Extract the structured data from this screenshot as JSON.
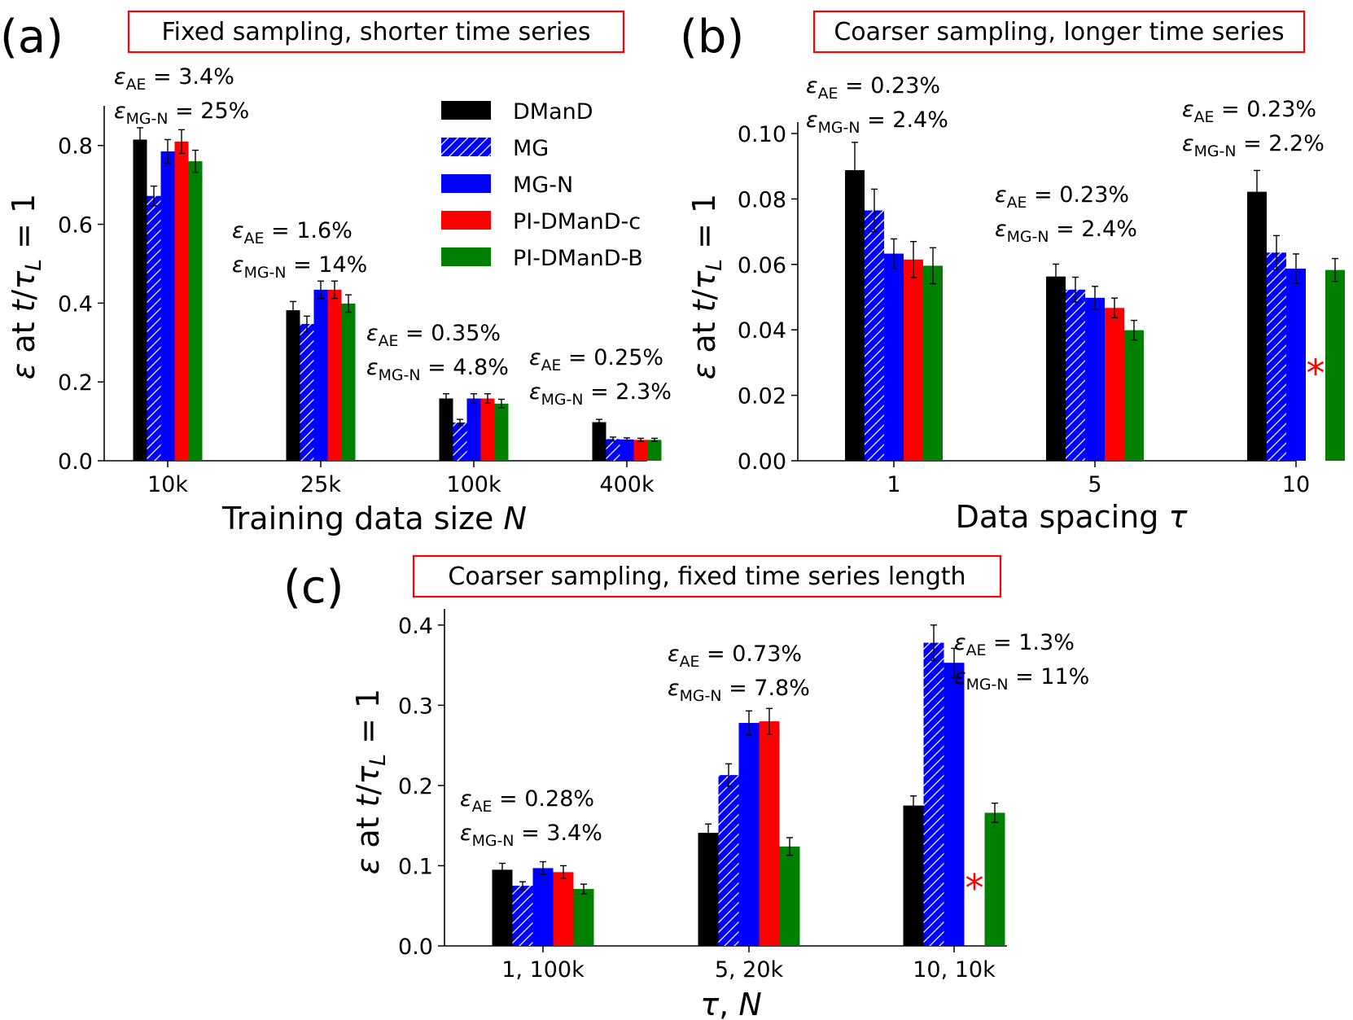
{
  "colors": {
    "DMand": "#000000",
    "MG": "#0000ff",
    "MG-N": "#0000ff",
    "PI-DManD-c": "#ff0000",
    "PI-DManD-B": "#008000",
    "frame": "#ff0000",
    "star": "#ff0000"
  },
  "legend": [
    "DManD",
    "MG",
    "MG-N",
    "PI-DManD-c",
    "PI-DManD-B"
  ],
  "chart_data": [
    {
      "type": "bar",
      "panel": "(a)",
      "title": "Fixed sampling, shorter time series",
      "xlabel": "Training data size N",
      "ylabel": "ε at t/τL = 1",
      "ylim": [
        0,
        0.88
      ],
      "yticks": [
        "0.0",
        "0.2",
        "0.4",
        "0.6",
        "0.8"
      ],
      "categories": [
        "10k",
        "25k",
        "100k",
        "400k"
      ],
      "series": [
        {
          "name": "DManD",
          "values": [
            0.815,
            0.382,
            0.158,
            0.098
          ],
          "errors": [
            0.03,
            0.022,
            0.012,
            0.007
          ]
        },
        {
          "name": "MG",
          "values": [
            0.672,
            0.347,
            0.097,
            0.055
          ],
          "errors": [
            0.025,
            0.02,
            0.008,
            0.005
          ]
        },
        {
          "name": "MG-N",
          "values": [
            0.785,
            0.434,
            0.158,
            0.054
          ],
          "errors": [
            0.03,
            0.022,
            0.012,
            0.004
          ]
        },
        {
          "name": "PI-DManD-c",
          "values": [
            0.81,
            0.434,
            0.158,
            0.053
          ],
          "errors": [
            0.03,
            0.022,
            0.012,
            0.004
          ]
        },
        {
          "name": "PI-DManD-B",
          "values": [
            0.76,
            0.399,
            0.145,
            0.053
          ],
          "errors": [
            0.028,
            0.022,
            0.011,
            0.004
          ]
        }
      ],
      "annotations": [
        {
          "ae": "3.4%",
          "mgn": "25%"
        },
        {
          "ae": "1.6%",
          "mgn": "14%"
        },
        {
          "ae": "0.35%",
          "mgn": "4.8%"
        },
        {
          "ae": "0.25%",
          "mgn": "2.3%"
        }
      ]
    },
    {
      "type": "bar",
      "panel": "(b)",
      "title": "Coarser sampling, longer time series",
      "xlabel": "Data spacing τ",
      "ylabel": "ε at t/τL = 1",
      "ylim": [
        0,
        0.101
      ],
      "yticks": [
        "0.00",
        "0.02",
        "0.04",
        "0.06",
        "0.08",
        "0.10"
      ],
      "categories": [
        "1",
        "5",
        "10"
      ],
      "series": [
        {
          "name": "DManD",
          "values": [
            0.0888,
            0.0563,
            0.0822
          ],
          "errors": [
            0.0085,
            0.0038,
            0.0065
          ]
        },
        {
          "name": "MG",
          "values": [
            0.0765,
            0.0523,
            0.0636
          ],
          "errors": [
            0.0065,
            0.0038,
            0.0052
          ]
        },
        {
          "name": "MG-N",
          "values": [
            0.0633,
            0.0498,
            0.0587
          ],
          "errors": [
            0.0045,
            0.0035,
            0.0045
          ]
        },
        {
          "name": "PI-DManD-c",
          "values": [
            0.0615,
            0.0467,
            null
          ],
          "errors": [
            0.0055,
            0.003,
            0
          ]
        },
        {
          "name": "PI-DManD-B",
          "values": [
            0.0596,
            0.0399,
            0.0583
          ],
          "errors": [
            0.0055,
            0.003,
            0.0035
          ]
        }
      ],
      "missing_marker": {
        "category": "10",
        "series": "PI-DManD-c",
        "symbol": "*"
      },
      "annotations": [
        {
          "ae": "0.23%",
          "mgn": "2.4%"
        },
        {
          "ae": "0.23%",
          "mgn": "2.4%"
        },
        {
          "ae": "0.23%",
          "mgn": "2.2%"
        }
      ]
    },
    {
      "type": "bar",
      "panel": "(c)",
      "title": "Coarser sampling, fixed time series length",
      "xlabel": "τ, N",
      "ylabel": "ε at t/τL = 1",
      "ylim": [
        0,
        0.41
      ],
      "yticks": [
        "0.0",
        "0.1",
        "0.2",
        "0.3",
        "0.4"
      ],
      "categories": [
        "1, 100k",
        "5, 20k",
        "10, 10k"
      ],
      "series": [
        {
          "name": "DManD",
          "values": [
            0.095,
            0.141,
            0.175
          ],
          "errors": [
            0.008,
            0.011,
            0.012
          ]
        },
        {
          "name": "MG",
          "values": [
            0.075,
            0.213,
            0.378
          ],
          "errors": [
            0.005,
            0.014,
            0.022
          ]
        },
        {
          "name": "MG-N",
          "values": [
            0.097,
            0.278,
            0.353
          ],
          "errors": [
            0.008,
            0.015,
            0.018
          ]
        },
        {
          "name": "PI-DManD-c",
          "values": [
            0.092,
            0.28,
            null
          ],
          "errors": [
            0.008,
            0.016,
            0
          ]
        },
        {
          "name": "PI-DManD-B",
          "values": [
            0.071,
            0.124,
            0.166
          ],
          "errors": [
            0.006,
            0.011,
            0.012
          ]
        }
      ],
      "missing_marker": {
        "category": "10, 10k",
        "series": "PI-DManD-c",
        "symbol": "*"
      },
      "annotations": [
        {
          "ae": "0.28%",
          "mgn": "3.4%"
        },
        {
          "ae": "0.73%",
          "mgn": "7.8%"
        },
        {
          "ae": "1.3%",
          "mgn": "11%"
        }
      ]
    }
  ]
}
